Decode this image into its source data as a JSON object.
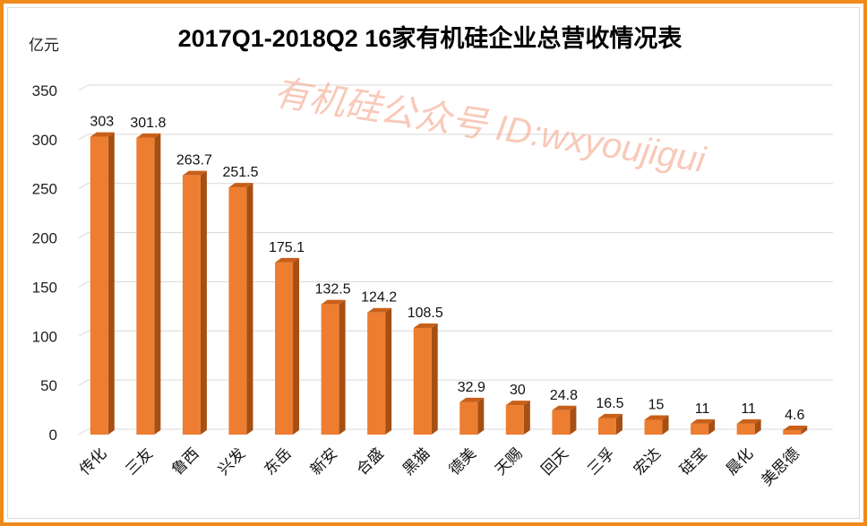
{
  "chart_data": {
    "type": "bar",
    "title": "2017Q1-2018Q2  16家有机硅企业总营收情况表",
    "ylabel": "亿元",
    "xlabel": "",
    "ylim": [
      0,
      350
    ],
    "yticks": [
      0,
      50,
      100,
      150,
      200,
      250,
      300,
      350
    ],
    "grid": true,
    "legend": "none",
    "categories": [
      "传化",
      "三友",
      "鲁西",
      "兴发",
      "东岳",
      "新安",
      "合盛",
      "黑猫",
      "德美",
      "天赐",
      "回天",
      "三孚",
      "宏达",
      "硅宝",
      "晨化",
      "美思德"
    ],
    "values": [
      303,
      301.8,
      263.7,
      251.5,
      175.1,
      132.5,
      124.2,
      108.5,
      32.9,
      30,
      24.8,
      16.5,
      15,
      11,
      11,
      4.6
    ],
    "bar_color": "#ed7d31",
    "bar_side_color": "#a64f12",
    "bar_top_color": "#c8601a"
  },
  "watermark": "有机硅公众号 ID:wxyoujigui"
}
